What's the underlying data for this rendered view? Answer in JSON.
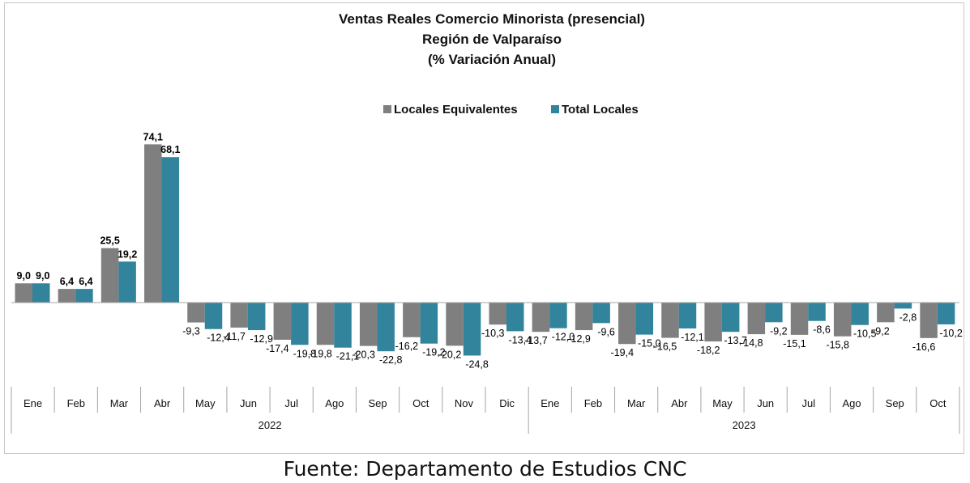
{
  "chart_data": {
    "type": "bar",
    "title_lines": [
      "Ventas Reales Comercio Minorista (presencial)",
      "Región de Valparaíso",
      "(% Variación Anual)"
    ],
    "categories": [
      "Ene",
      "Feb",
      "Mar",
      "Abr",
      "May",
      "Jun",
      "Jul",
      "Ago",
      "Sep",
      "Oct",
      "Nov",
      "Dic",
      "Ene",
      "Feb",
      "Mar",
      "Abr",
      "May",
      "Jun",
      "Jul",
      "Ago",
      "Sep",
      "Oct"
    ],
    "year_groups": [
      {
        "label": "2022",
        "count": 12
      },
      {
        "label": "2023",
        "count": 10
      }
    ],
    "series": [
      {
        "name": "Locales Equivalentes",
        "color": "#7f7f7f",
        "values": [
          9.0,
          6.4,
          25.5,
          74.1,
          -9.3,
          -11.7,
          -17.4,
          -19.8,
          -20.3,
          -16.2,
          -20.2,
          -10.3,
          -13.7,
          -12.9,
          -19.4,
          -16.5,
          -18.2,
          -14.8,
          -15.1,
          -15.8,
          -9.2,
          -16.6
        ],
        "labels": [
          "9,0",
          "6,4",
          "25,5",
          "74,1",
          "-9,3",
          "-11,7",
          "-17,4",
          "-19,8",
          "-20,3",
          "-16,2",
          "-20,2",
          "-10,3",
          "-13,7",
          "-12,9",
          "-19,4",
          "-16,5",
          "-18,2",
          "-14,8",
          "-15,1",
          "-15,8",
          "-9,2",
          "-16,6"
        ]
      },
      {
        "name": "Total Locales",
        "color": "#31849b",
        "values": [
          9.0,
          6.4,
          19.2,
          68.1,
          -12.4,
          -12.9,
          -19.8,
          -21.1,
          -22.8,
          -19.2,
          -24.8,
          -13.4,
          -12.0,
          -9.6,
          -15.0,
          -12.1,
          -13.7,
          -9.2,
          -8.6,
          -10.5,
          -2.8,
          -10.2
        ],
        "labels": [
          "9,0",
          "6,4",
          "19,2",
          "68,1",
          "-12,4",
          "-12,9",
          "-19,8",
          "-21,1",
          "-22,8",
          "-19,2",
          "-24,8",
          "-13,4",
          "-12,0",
          "-9,6",
          "-15,0",
          "-12,1",
          "-13,7",
          "-9,2",
          "-8,6",
          "-10,5",
          "-2,8",
          "-10,2"
        ]
      }
    ],
    "legend_position": "top-center",
    "grid": false,
    "ylim": [
      -30,
      80
    ]
  },
  "footer": {
    "source": "Fuente: Departamento de Estudios CNC"
  }
}
